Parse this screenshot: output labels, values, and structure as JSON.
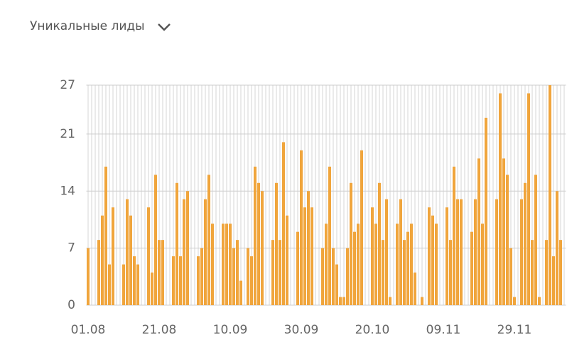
{
  "chart_data": {
    "type": "bar",
    "title": "Уникальные лиды",
    "color": "#f0a53c",
    "categories": [
      "01.08",
      null,
      null,
      null,
      null,
      null,
      null,
      null,
      null,
      null,
      null,
      null,
      null,
      null,
      null,
      null,
      null,
      null,
      null,
      null,
      "21.08",
      null,
      null,
      null,
      null,
      null,
      null,
      null,
      null,
      null,
      null,
      null,
      null,
      null,
      null,
      null,
      null,
      null,
      null,
      null,
      "10.09",
      null,
      null,
      null,
      null,
      null,
      null,
      null,
      null,
      null,
      null,
      null,
      null,
      null,
      null,
      null,
      null,
      null,
      null,
      null,
      "30.09",
      null,
      null,
      null,
      null,
      null,
      null,
      null,
      null,
      null,
      null,
      null,
      null,
      null,
      null,
      null,
      null,
      null,
      null,
      null,
      "20.10",
      null,
      null,
      null,
      null,
      null,
      null,
      null,
      null,
      null,
      null,
      null,
      null,
      null,
      null,
      null,
      null,
      null,
      null,
      null,
      "09.11",
      null,
      null,
      null,
      null,
      null,
      null,
      null,
      null,
      null,
      null,
      null,
      null,
      null,
      null,
      null,
      null,
      null,
      null,
      null,
      "29.11",
      null,
      null,
      null,
      null,
      null,
      null,
      null,
      null,
      null,
      null,
      null,
      null,
      null,
      null
    ],
    "values": [
      7,
      0,
      0,
      8,
      11,
      17,
      5,
      12,
      0,
      0,
      5,
      13,
      11,
      6,
      5,
      0,
      0,
      12,
      4,
      16,
      8,
      8,
      0,
      0,
      6,
      15,
      6,
      13,
      14,
      0,
      0,
      6,
      7,
      13,
      16,
      10,
      0,
      0,
      10,
      10,
      10,
      7,
      8,
      3,
      0,
      7,
      6,
      17,
      15,
      14,
      0,
      0,
      8,
      15,
      8,
      20,
      11,
      0,
      0,
      9,
      19,
      12,
      14,
      12,
      0,
      0,
      7,
      10,
      17,
      7,
      5,
      1,
      1,
      7,
      15,
      9,
      10,
      19,
      0,
      0,
      12,
      10,
      15,
      8,
      13,
      1,
      0,
      10,
      13,
      8,
      9,
      10,
      4,
      0,
      1,
      0,
      12,
      11,
      10,
      0,
      0,
      12,
      8,
      17,
      13,
      13,
      0,
      0,
      9,
      13,
      18,
      10,
      23,
      0,
      0,
      13,
      26,
      18,
      16,
      7,
      1,
      0,
      13,
      15,
      26,
      8,
      16,
      1,
      0,
      8,
      27,
      6,
      14,
      8,
      0
    ],
    "ylim": [
      0,
      27
    ],
    "yticks": [
      0,
      7,
      14,
      21,
      27
    ],
    "grid": true
  }
}
